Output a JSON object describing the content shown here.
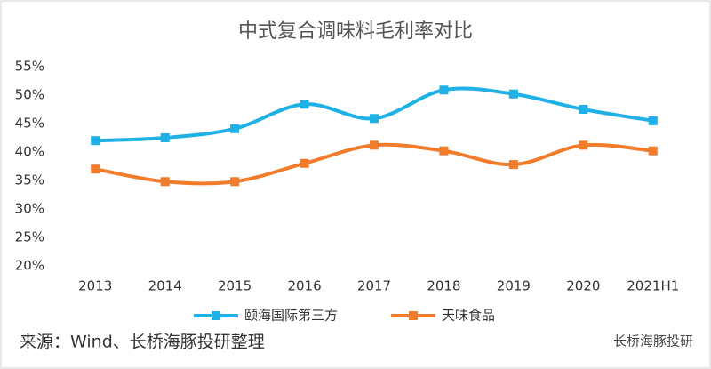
{
  "chart_data": {
    "type": "line",
    "title": "中式复合调味料毛利率对比",
    "categories": [
      "2013",
      "2014",
      "2015",
      "2016",
      "2017",
      "2018",
      "2019",
      "2020",
      "2021H1"
    ],
    "series": [
      {
        "name": "颐海国际第三方",
        "color": "#1fb1e6",
        "values": [
          42.0,
          42.5,
          44.1,
          48.4,
          45.9,
          50.9,
          50.2,
          47.5,
          45.5
        ]
      },
      {
        "name": "天味食品",
        "color": "#f07c2c",
        "values": [
          37.0,
          34.8,
          34.8,
          38.0,
          41.2,
          40.2,
          37.8,
          41.2,
          40.2
        ]
      }
    ],
    "ylim": [
      20,
      55
    ],
    "yticks": [
      {
        "value": 20,
        "label": "20%"
      },
      {
        "value": 25,
        "label": "25%"
      },
      {
        "value": 30,
        "label": "30%"
      },
      {
        "value": 35,
        "label": "35%"
      },
      {
        "value": 40,
        "label": "40%"
      },
      {
        "value": 45,
        "label": "45%"
      },
      {
        "value": 50,
        "label": "50%"
      },
      {
        "value": 55,
        "label": "55%"
      }
    ],
    "grid": false,
    "legend": "bottom",
    "source": "来源：Wind、长桥海豚投研整理",
    "watermark": "长桥海豚投研"
  }
}
